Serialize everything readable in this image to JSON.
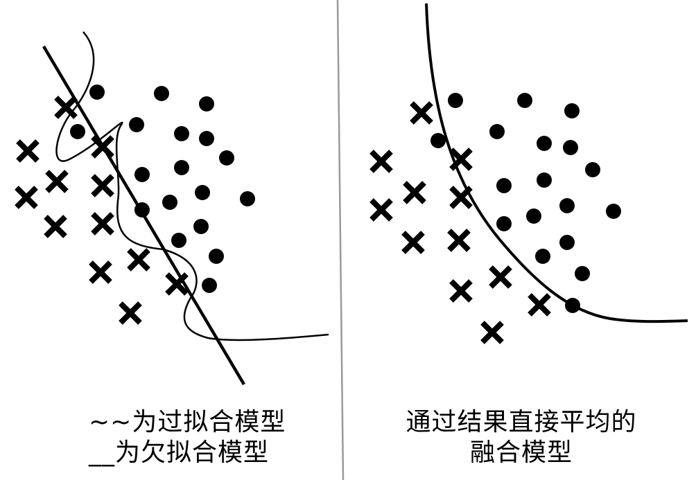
{
  "left_panel": {
    "caption_line1": "~~为过拟合模型",
    "caption_line2": "__为欠拟合模型"
  },
  "right_panel": {
    "caption_line1": "通过结果直接平均的",
    "caption_line2": "融合模型"
  },
  "colors": {
    "ink": "#000000",
    "divider": "#9a9a9a",
    "background": "#ffffff"
  },
  "marker_types": [
    "cross",
    "dot"
  ]
}
